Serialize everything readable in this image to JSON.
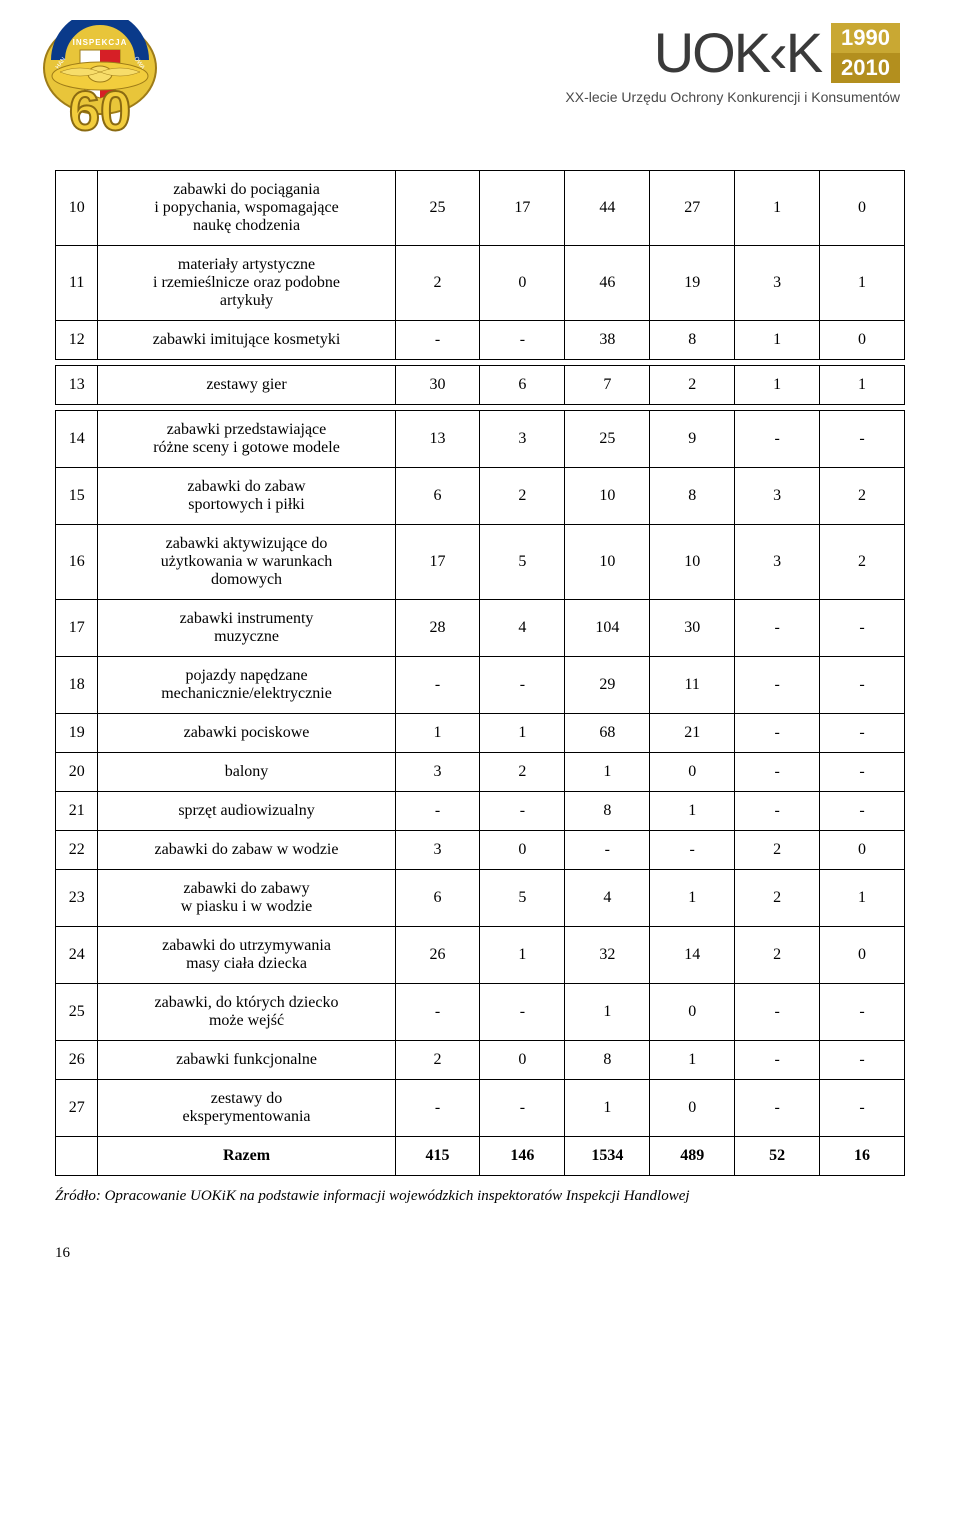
{
  "header": {
    "left_logo": {
      "top_text": "INSPEKCJA HANDLOWA",
      "big_number": "60",
      "ribbon_color": "#0a3a8a",
      "shield_red": "#d61f26",
      "shield_white": "#ffffff",
      "outer_gold": "#e8c53a",
      "wing_gold": "#f2cd3d"
    },
    "right_logo": {
      "brand": "UOK‹K",
      "year_top": "1990",
      "year_bot": "2010",
      "subtitle": "XX-lecie Urzędu Ochrony Konkurencji i Konsumentów"
    }
  },
  "table": {
    "groups": [
      {
        "rows": [
          {
            "idx": "10",
            "label": "zabawki do pociągania\ni popychania, wspomagające\nnaukę chodzenia",
            "v": [
              "25",
              "17",
              "44",
              "27",
              "1",
              "0"
            ]
          },
          {
            "idx": "11",
            "label": "materiały artystyczne\ni rzemieślnicze oraz podobne\nartykuły",
            "v": [
              "2",
              "0",
              "46",
              "19",
              "3",
              "1"
            ]
          },
          {
            "idx": "12",
            "label": "zabawki imitujące kosmetyki",
            "v": [
              "-",
              "-",
              "38",
              "8",
              "1",
              "0"
            ]
          }
        ]
      },
      {
        "rows": [
          {
            "idx": "13",
            "label": "zestawy gier",
            "v": [
              "30",
              "6",
              "7",
              "2",
              "1",
              "1"
            ]
          }
        ]
      },
      {
        "rows": [
          {
            "idx": "14",
            "label": "zabawki przedstawiające\nróżne sceny i gotowe modele",
            "v": [
              "13",
              "3",
              "25",
              "9",
              "-",
              "-"
            ]
          },
          {
            "idx": "15",
            "label": "zabawki do zabaw\nsportowych i piłki",
            "v": [
              "6",
              "2",
              "10",
              "8",
              "3",
              "2"
            ]
          },
          {
            "idx": "16",
            "label": "zabawki aktywizujące do\nużytkowania w warunkach\ndomowych",
            "v": [
              "17",
              "5",
              "10",
              "10",
              "3",
              "2"
            ]
          },
          {
            "idx": "17",
            "label": "zabawki instrumenty\nmuzyczne",
            "v": [
              "28",
              "4",
              "104",
              "30",
              "-",
              "-"
            ]
          },
          {
            "idx": "18",
            "label": "pojazdy napędzane\nmechanicznie/elektrycznie",
            "v": [
              "-",
              "-",
              "29",
              "11",
              "-",
              "-"
            ]
          },
          {
            "idx": "19",
            "label": "zabawki pociskowe",
            "v": [
              "1",
              "1",
              "68",
              "21",
              "-",
              "-"
            ]
          },
          {
            "idx": "20",
            "label": "balony",
            "v": [
              "3",
              "2",
              "1",
              "0",
              "-",
              "-"
            ]
          },
          {
            "idx": "21",
            "label": "sprzęt audiowizualny",
            "v": [
              "-",
              "-",
              "8",
              "1",
              "-",
              "-"
            ]
          },
          {
            "idx": "22",
            "label": "zabawki do zabaw w wodzie",
            "v": [
              "3",
              "0",
              "-",
              "-",
              "2",
              "0"
            ]
          },
          {
            "idx": "23",
            "label": "zabawki do zabawy\nw piasku i w wodzie",
            "v": [
              "6",
              "5",
              "4",
              "1",
              "2",
              "1"
            ]
          },
          {
            "idx": "24",
            "label": "zabawki do utrzymywania\nmasy ciała dziecka",
            "v": [
              "26",
              "1",
              "32",
              "14",
              "2",
              "0"
            ]
          },
          {
            "idx": "25",
            "label": "zabawki, do których dziecko\nmoże wejść",
            "v": [
              "-",
              "-",
              "1",
              "0",
              "-",
              "-"
            ]
          },
          {
            "idx": "26",
            "label": "zabawki funkcjonalne",
            "v": [
              "2",
              "0",
              "8",
              "1",
              "-",
              "-"
            ]
          },
          {
            "idx": "27",
            "label": "zestawy do\neksperymentowania",
            "v": [
              "-",
              "-",
              "1",
              "0",
              "-",
              "-"
            ]
          }
        ]
      }
    ],
    "total": {
      "label": "Razem",
      "v": [
        "415",
        "146",
        "1534",
        "489",
        "52",
        "16"
      ]
    }
  },
  "source": "Źródło: Opracowanie UOKiK na podstawie informacji wojewódzkich inspektoratów Inspekcji Handlowej",
  "page_number": "16"
}
